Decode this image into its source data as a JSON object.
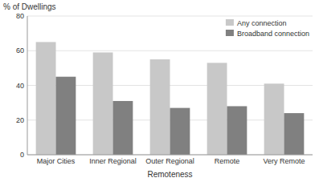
{
  "chart_data": {
    "type": "bar",
    "categories": [
      "Major Cities",
      "Inner Regional",
      "Outer Regional",
      "Remote",
      "Very Remote"
    ],
    "x_label": "Remoteness",
    "y_label": "% of Dwellings",
    "series": [
      {
        "name": "Any connection",
        "color": "#c8c8c8",
        "values": [
          65,
          59,
          55,
          53,
          41
        ]
      },
      {
        "name": "Broadband connection",
        "color": "#808080",
        "values": [
          45,
          31,
          27,
          28,
          24
        ]
      }
    ],
    "ylim": [
      0,
      80
    ],
    "yticks": [
      0,
      20,
      40,
      60,
      80
    ],
    "grid": true,
    "legend": "upper right"
  }
}
